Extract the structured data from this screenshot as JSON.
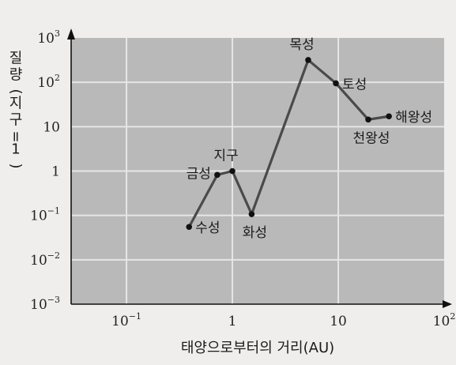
{
  "chart_data": {
    "type": "scatter",
    "xlabel": "태양으로부터의 거리(AU)",
    "ylabel": "질량(지구=1)",
    "xscale": "log",
    "yscale": "log",
    "xlim": [
      0.03,
      100
    ],
    "ylim": [
      0.001,
      1000
    ],
    "grid": true,
    "x_ticks": [
      {
        "value": 0.1,
        "base": "10",
        "exp": "−1"
      },
      {
        "value": 1,
        "base": "1",
        "exp": ""
      },
      {
        "value": 10,
        "base": "10",
        "exp": ""
      },
      {
        "value": 100,
        "base": "10",
        "exp": "2"
      }
    ],
    "y_ticks": [
      {
        "value": 0.001,
        "base": "10",
        "exp": "−3"
      },
      {
        "value": 0.01,
        "base": "10",
        "exp": "−2"
      },
      {
        "value": 0.1,
        "base": "10",
        "exp": "−1"
      },
      {
        "value": 1,
        "base": "1",
        "exp": ""
      },
      {
        "value": 10,
        "base": "10",
        "exp": ""
      },
      {
        "value": 100,
        "base": "10",
        "exp": "2"
      },
      {
        "value": 1000,
        "base": "10",
        "exp": "3"
      }
    ],
    "points": [
      {
        "name": "수성",
        "x": 0.39,
        "y": 0.055,
        "label_pos": "right"
      },
      {
        "name": "금성",
        "x": 0.72,
        "y": 0.82,
        "label_pos": "left"
      },
      {
        "name": "지구",
        "x": 1.0,
        "y": 1.0,
        "label_pos": "above"
      },
      {
        "name": "화성",
        "x": 1.52,
        "y": 0.107,
        "label_pos": "below"
      },
      {
        "name": "목성",
        "x": 5.2,
        "y": 318,
        "label_pos": "above"
      },
      {
        "name": "토성",
        "x": 9.5,
        "y": 95,
        "label_pos": "right"
      },
      {
        "name": "천왕성",
        "x": 19.2,
        "y": 14.5,
        "label_pos": "below"
      },
      {
        "name": "해왕성",
        "x": 30.1,
        "y": 17.1,
        "label_pos": "right"
      }
    ],
    "colors": {
      "plot_bg": "#b9b9b9",
      "grid": "#e6e6e6",
      "line": "#4a4a4a",
      "point": "#111111",
      "page_bg": "#efeeec"
    }
  }
}
